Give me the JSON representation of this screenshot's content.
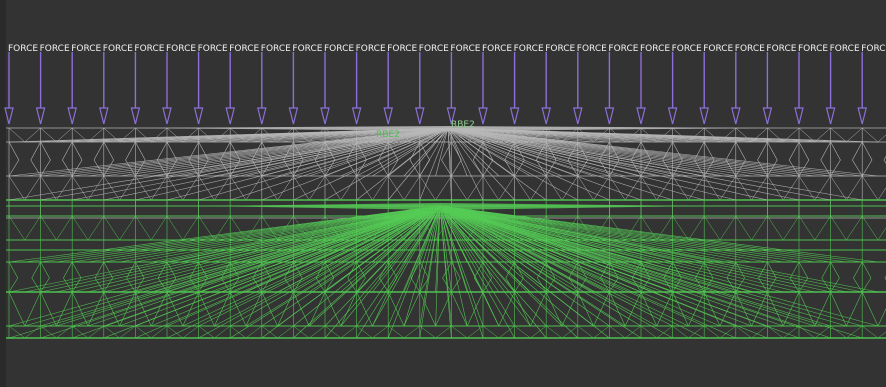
{
  "viewport": {
    "background": "#333333"
  },
  "loads": {
    "label": "FORCE",
    "first_label": "FORCE",
    "count": 28,
    "color": "#8c6fd8",
    "label_color": "#f0f0f0"
  },
  "rbe_labels": [
    {
      "text": "RBE2",
      "color": "#8fd18f"
    },
    {
      "text": "RBE2",
      "color": "#4fc14f"
    },
    {
      "text": "RBE2",
      "color": "#4fc14f"
    }
  ],
  "mesh": {
    "gray_color": "#b5b5b5",
    "green_color": "#4fc24f",
    "upper_cylinder": {
      "name": "upper-gray-mesh"
    },
    "lower_cylinder": {
      "name": "lower-green-mesh"
    }
  },
  "spider": {
    "gray_color": "#b8b8b8",
    "green_color": "#55cc55"
  }
}
